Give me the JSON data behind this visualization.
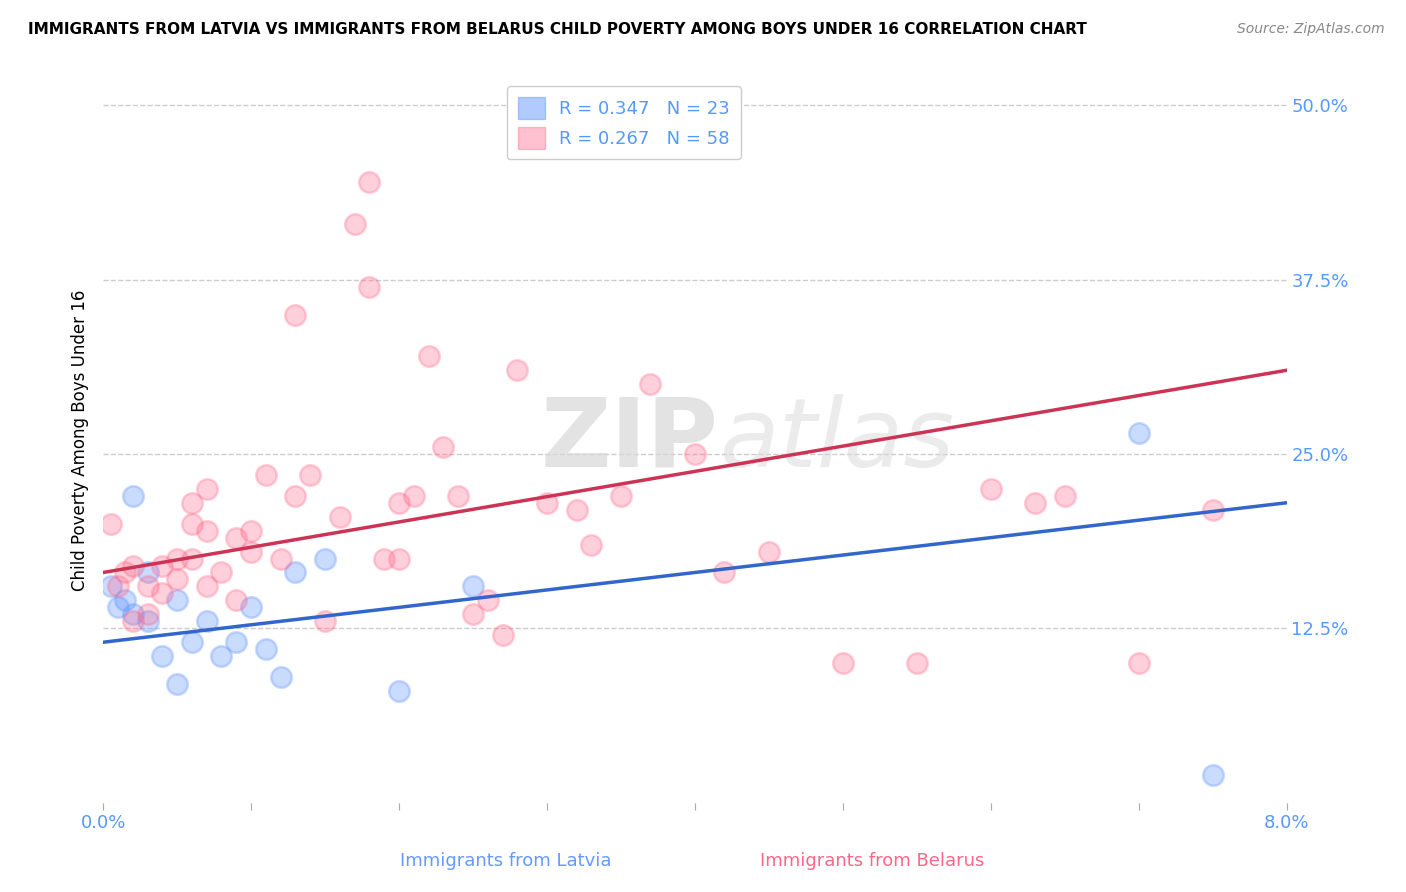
{
  "title": "IMMIGRANTS FROM LATVIA VS IMMIGRANTS FROM BELARUS CHILD POVERTY AMONG BOYS UNDER 16 CORRELATION CHART",
  "source": "Source: ZipAtlas.com",
  "xlabel_latvia": "Immigrants from Latvia",
  "xlabel_belarus": "Immigrants from Belarus",
  "ylabel": "Child Poverty Among Boys Under 16",
  "xlim": [
    0.0,
    0.08
  ],
  "ylim": [
    0.0,
    0.52
  ],
  "ylim_display": [
    0.0,
    0.5
  ],
  "yticks_right": [
    0.125,
    0.25,
    0.375,
    0.5
  ],
  "ytick_labels_right": [
    "12.5%",
    "25.0%",
    "37.5%",
    "50.0%"
  ],
  "xticks": [
    0.0,
    0.01,
    0.02,
    0.03,
    0.04,
    0.05,
    0.06,
    0.07,
    0.08
  ],
  "latvia_R": 0.347,
  "latvia_N": 23,
  "belarus_R": 0.267,
  "belarus_N": 58,
  "latvia_color": "#6699ff",
  "belarus_color": "#ff6688",
  "latvia_line_color": "#3366cc",
  "belarus_line_color": "#cc3355",
  "latvia_trend_x": [
    0.0,
    0.08
  ],
  "latvia_trend_y": [
    0.115,
    0.215
  ],
  "belarus_trend_x": [
    0.0,
    0.08
  ],
  "belarus_trend_y": [
    0.165,
    0.31
  ],
  "latvia_x": [
    0.0005,
    0.001,
    0.0015,
    0.002,
    0.002,
    0.003,
    0.003,
    0.004,
    0.005,
    0.005,
    0.006,
    0.007,
    0.008,
    0.009,
    0.01,
    0.011,
    0.012,
    0.013,
    0.015,
    0.02,
    0.025,
    0.07,
    0.075
  ],
  "latvia_y": [
    0.155,
    0.14,
    0.145,
    0.22,
    0.135,
    0.13,
    0.165,
    0.105,
    0.085,
    0.145,
    0.115,
    0.13,
    0.105,
    0.115,
    0.14,
    0.11,
    0.09,
    0.165,
    0.175,
    0.08,
    0.155,
    0.265,
    0.02
  ],
  "belarus_x": [
    0.0005,
    0.001,
    0.0015,
    0.002,
    0.002,
    0.003,
    0.003,
    0.004,
    0.004,
    0.005,
    0.005,
    0.006,
    0.006,
    0.006,
    0.007,
    0.007,
    0.007,
    0.008,
    0.009,
    0.009,
    0.01,
    0.01,
    0.011,
    0.012,
    0.013,
    0.013,
    0.014,
    0.015,
    0.016,
    0.017,
    0.018,
    0.018,
    0.019,
    0.02,
    0.02,
    0.021,
    0.022,
    0.023,
    0.024,
    0.025,
    0.026,
    0.027,
    0.028,
    0.03,
    0.032,
    0.033,
    0.035,
    0.037,
    0.04,
    0.042,
    0.045,
    0.05,
    0.055,
    0.06,
    0.063,
    0.065,
    0.07,
    0.075
  ],
  "belarus_y": [
    0.2,
    0.155,
    0.165,
    0.17,
    0.13,
    0.155,
    0.135,
    0.17,
    0.15,
    0.16,
    0.175,
    0.215,
    0.2,
    0.175,
    0.225,
    0.155,
    0.195,
    0.165,
    0.145,
    0.19,
    0.195,
    0.18,
    0.235,
    0.175,
    0.35,
    0.22,
    0.235,
    0.13,
    0.205,
    0.415,
    0.445,
    0.37,
    0.175,
    0.215,
    0.175,
    0.22,
    0.32,
    0.255,
    0.22,
    0.135,
    0.145,
    0.12,
    0.31,
    0.215,
    0.21,
    0.185,
    0.22,
    0.3,
    0.25,
    0.165,
    0.18,
    0.1,
    0.1,
    0.225,
    0.215,
    0.22,
    0.1,
    0.21
  ],
  "watermark_zip": "ZIP",
  "watermark_atlas": "atlas",
  "background_color": "#ffffff",
  "grid_color": "#cccccc"
}
